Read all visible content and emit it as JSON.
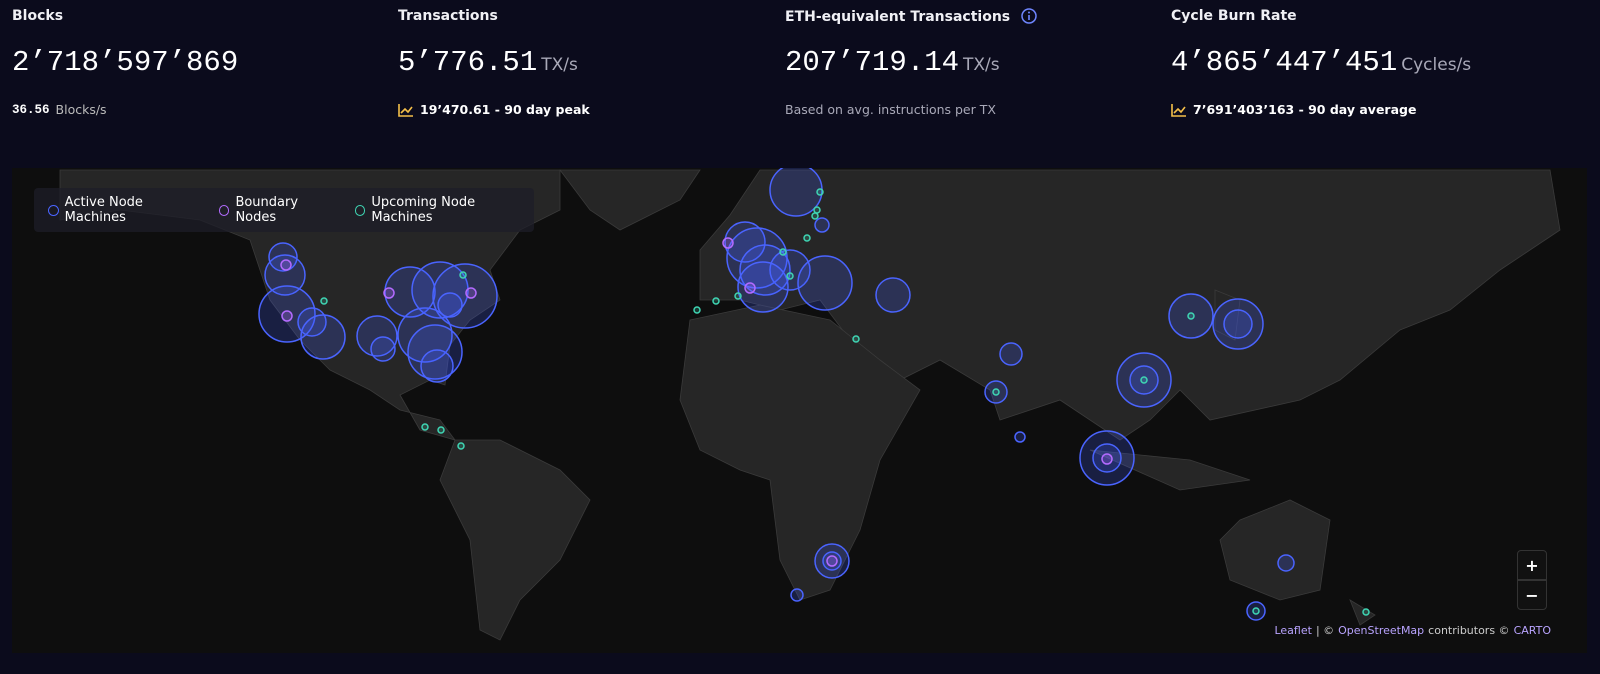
{
  "stats": [
    {
      "title": "Blocks",
      "value": "2’718’597’869",
      "subtitle_value": "36.56",
      "subtitle": "Blocks/s"
    },
    {
      "title": "Transactions",
      "value": "5’776.51",
      "unit": "TX/s",
      "subtitle": "19’470.61 - 90 day peak"
    },
    {
      "title": "ETH-equivalent Transactions",
      "value": "207’719.14",
      "unit": "TX/s",
      "subtitle": "Based on avg. instructions per TX"
    },
    {
      "title": "Cycle Burn Rate",
      "value": "4’865’447’451",
      "unit": "Cycles/s",
      "subtitle": "7’691’403’163 - 90 day average"
    }
  ],
  "map": {
    "legend": [
      "Active Node Machines",
      "Boundary Nodes",
      "Upcoming Node Machines"
    ],
    "zoom_in": "+",
    "zoom_out": "−",
    "attribution": [
      "Leaflet",
      "| ©",
      "OpenStreetMap",
      "contributors ©",
      "CARTO"
    ]
  }
}
